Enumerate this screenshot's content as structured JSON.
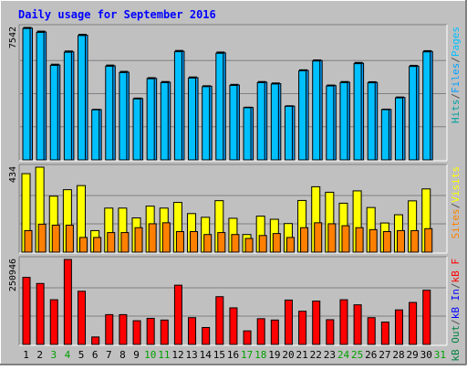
{
  "chart_data": {
    "type": "bar",
    "title": "Daily usage for September 2016",
    "days": [
      "1",
      "2",
      "3",
      "4",
      "5",
      "6",
      "7",
      "8",
      "9",
      "10",
      "11",
      "12",
      "13",
      "14",
      "15",
      "16",
      "17",
      "18",
      "19",
      "20",
      "21",
      "22",
      "23",
      "24",
      "25",
      "26",
      "27",
      "28",
      "29",
      "30",
      "31"
    ],
    "weekend_days": [
      "3",
      "4",
      "10",
      "11",
      "17",
      "18",
      "24",
      "25",
      "31"
    ],
    "panels": [
      {
        "id": "pages-files-hits",
        "max_label": "7542",
        "ymax": 7542,
        "legend": [
          "Pages",
          "/",
          "Files",
          "/",
          "Hits"
        ],
        "legend_colors": [
          "#00c0ff",
          "#505050",
          "#00a0ff",
          "#505050",
          "#00a0a0"
        ],
        "series": [
          {
            "name": "Hits",
            "color": "#00a0a0",
            "values": [
              7542,
              7330,
              5450,
              6200,
              7150,
              2880,
              5400,
              5040,
              3520,
              4680,
              4460,
              6230,
              4720,
              4220,
              6140,
              4300,
              3000,
              4460,
              4380,
              3080,
              5130,
              5690,
              4260,
              4460,
              5550,
              4450,
              2890,
              3580,
              5380,
              6220,
              0
            ]
          },
          {
            "name": "Files",
            "color": "#00a0ff",
            "values": [
              7500,
              7280,
              5400,
              6150,
              7100,
              2860,
              5350,
              4990,
              3490,
              4640,
              4420,
              6180,
              4680,
              4190,
              6090,
              4260,
              2980,
              4420,
              4340,
              3060,
              5090,
              5650,
              4230,
              4420,
              5500,
              4410,
              2870,
              3550,
              5340,
              6170,
              0
            ]
          },
          {
            "name": "Pages",
            "color": "#00c0ff",
            "values": [
              7480,
              7260,
              5380,
              6130,
              7080,
              2850,
              5330,
              4970,
              3470,
              4620,
              4400,
              6160,
              4660,
              4170,
              6070,
              4240,
              2970,
              4400,
              4320,
              3050,
              5070,
              5630,
              4210,
              4400,
              5480,
              4390,
              2860,
              3530,
              5320,
              6150,
              0
            ]
          }
        ]
      },
      {
        "id": "visits-sites",
        "max_label": "434",
        "ymax": 434,
        "legend": [
          "Visits",
          "/",
          "Sites"
        ],
        "legend_colors": [
          "#ffff00",
          "#505050",
          "#ff8000"
        ],
        "series": [
          {
            "name": "Visits",
            "color": "#ffff00",
            "values": [
              401,
              434,
              286,
              319,
              340,
              110,
              225,
              225,
              175,
              235,
              225,
              254,
              197,
              178,
              263,
              173,
              90,
              184,
              168,
              146,
              264,
              334,
              306,
              250,
              313,
              228,
              149,
              191,
              262,
              323,
              0
            ]
          },
          {
            "name": "Sites",
            "color": "#ff8000",
            "values": [
              110,
              143,
              138,
              138,
              75,
              75,
              100,
              100,
              125,
              145,
              150,
              105,
              105,
              90,
              100,
              90,
              70,
              85,
              95,
              75,
              125,
              150,
              145,
              135,
              125,
              115,
              105,
              110,
              110,
              120,
              0
            ]
          }
        ]
      },
      {
        "id": "kb-f-in-out",
        "max_label": "250946",
        "ymax": 250946,
        "legend": [
          "kB F",
          "/",
          "kB In",
          "/",
          "kB Out"
        ],
        "legend_colors": [
          "#ff0000",
          "#505050",
          "#0000ff",
          "#505050",
          "#008040"
        ],
        "series": [
          {
            "name": "kB F",
            "color": "#ff0000",
            "values": [
              198000,
              180000,
              132000,
              250946,
              157000,
              22000,
              88000,
              88000,
              70000,
              77000,
              72000,
              175000,
              79000,
              50000,
              141000,
              108000,
              40000,
              76000,
              72000,
              131000,
              98000,
              128000,
              73000,
              132000,
              117000,
              79000,
              66000,
              102000,
              124000,
              160000,
              0
            ]
          }
        ]
      }
    ]
  }
}
